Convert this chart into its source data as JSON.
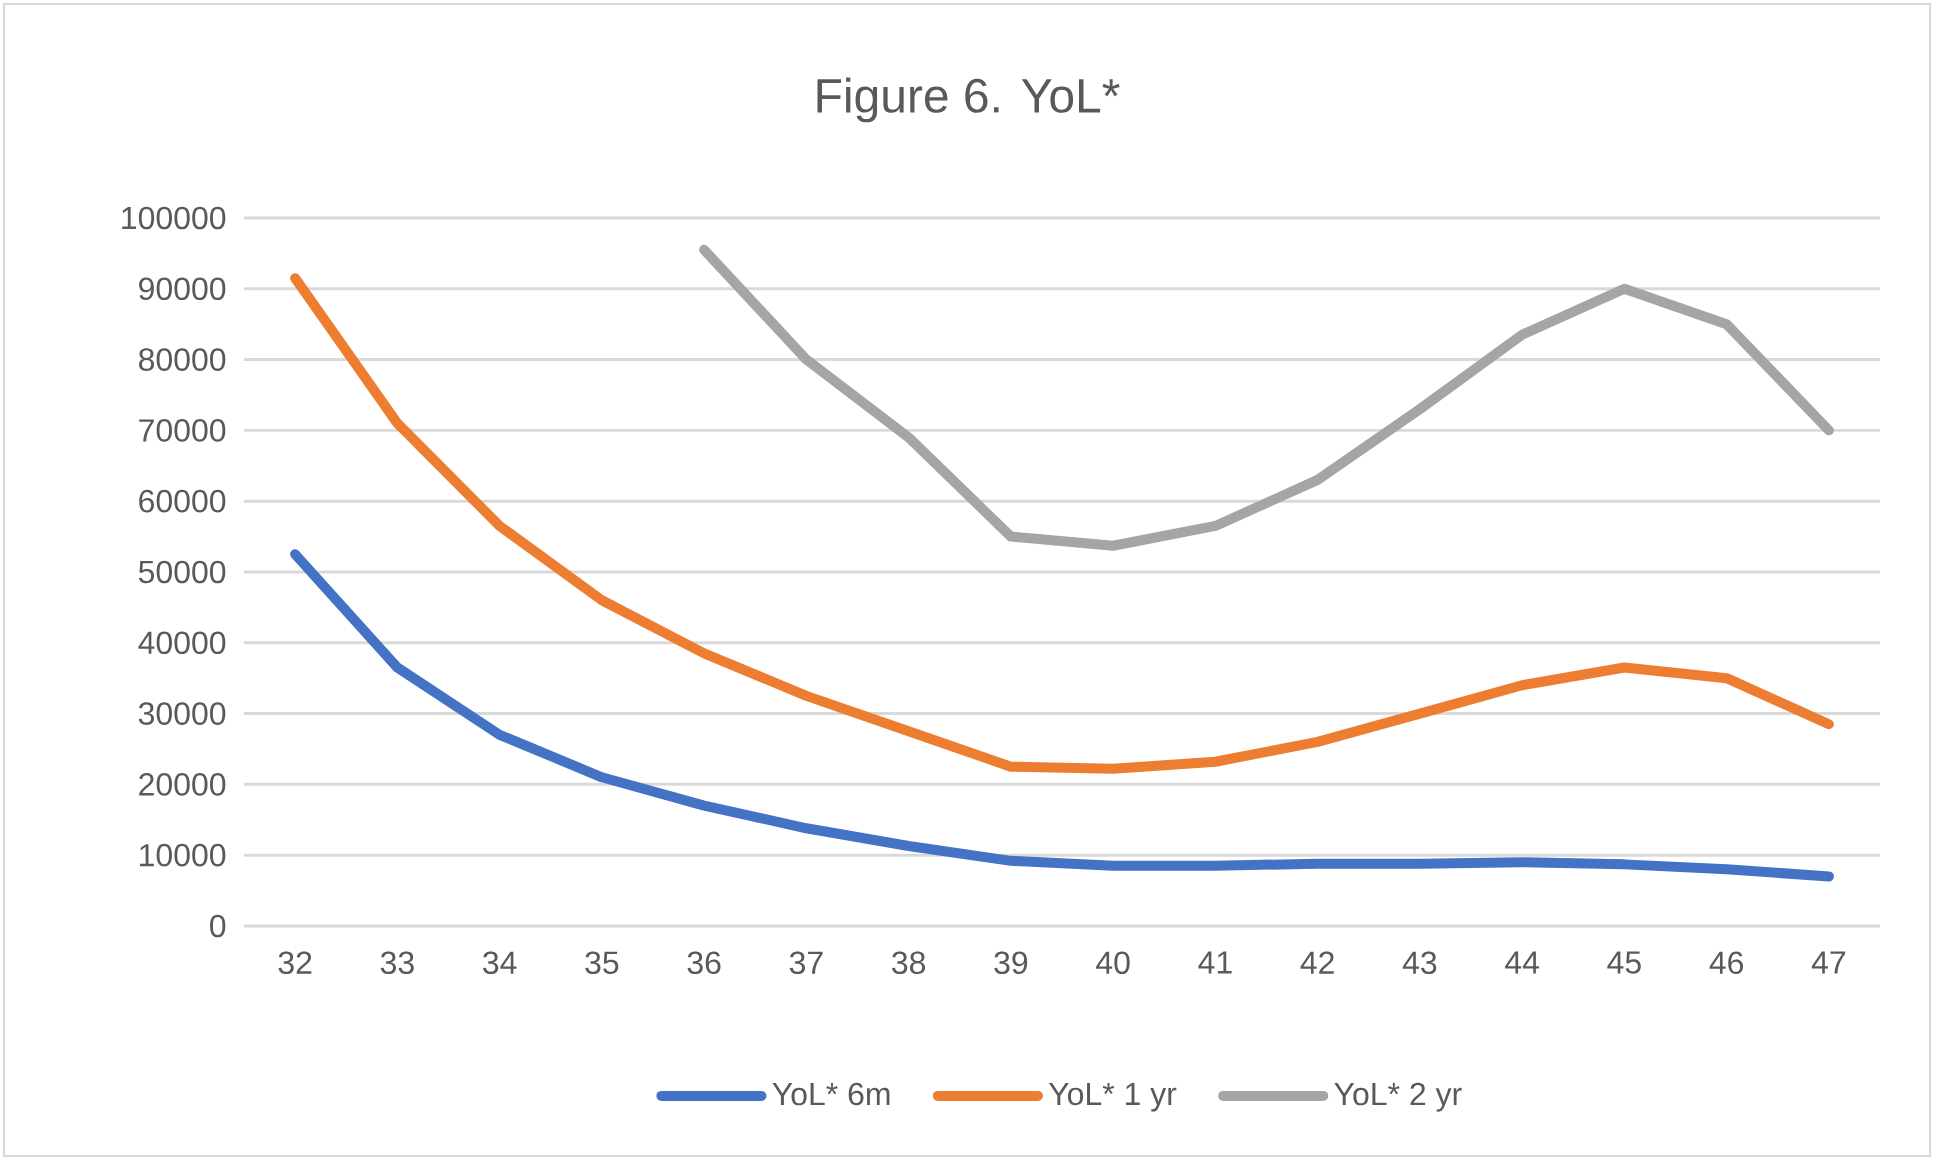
{
  "chart_data": {
    "type": "line",
    "title": "Figure 6. YoL*",
    "categories": [
      "32",
      "33",
      "34",
      "35",
      "36",
      "37",
      "38",
      "39",
      "40",
      "41",
      "42",
      "43",
      "44",
      "45",
      "46",
      "47"
    ],
    "series": [
      {
        "name": "YoL* 6m",
        "color": "#4472c4",
        "values": [
          52500,
          36500,
          27000,
          21000,
          17000,
          13800,
          11300,
          9200,
          8500,
          8500,
          8800,
          8800,
          9000,
          8700,
          8000,
          7000
        ]
      },
      {
        "name": "YoL* 1 yr",
        "color": "#ed7d31",
        "values": [
          91500,
          71000,
          56500,
          46000,
          38500,
          32500,
          27500,
          22500,
          22200,
          23200,
          26000,
          30000,
          34000,
          36500,
          35000,
          28500
        ]
      },
      {
        "name": "YoL* 2 yr",
        "color": "#a5a5a5",
        "values": [
          null,
          null,
          null,
          null,
          95500,
          80000,
          69000,
          55000,
          53700,
          56500,
          63000,
          73000,
          83500,
          90000,
          85000,
          70000
        ]
      }
    ],
    "ylim": [
      0,
      100000
    ],
    "yticks": [
      0,
      10000,
      20000,
      30000,
      40000,
      50000,
      60000,
      70000,
      80000,
      90000,
      100000
    ],
    "grid": "y",
    "legend": "bottom",
    "marker": "none",
    "line_style": "solid"
  }
}
